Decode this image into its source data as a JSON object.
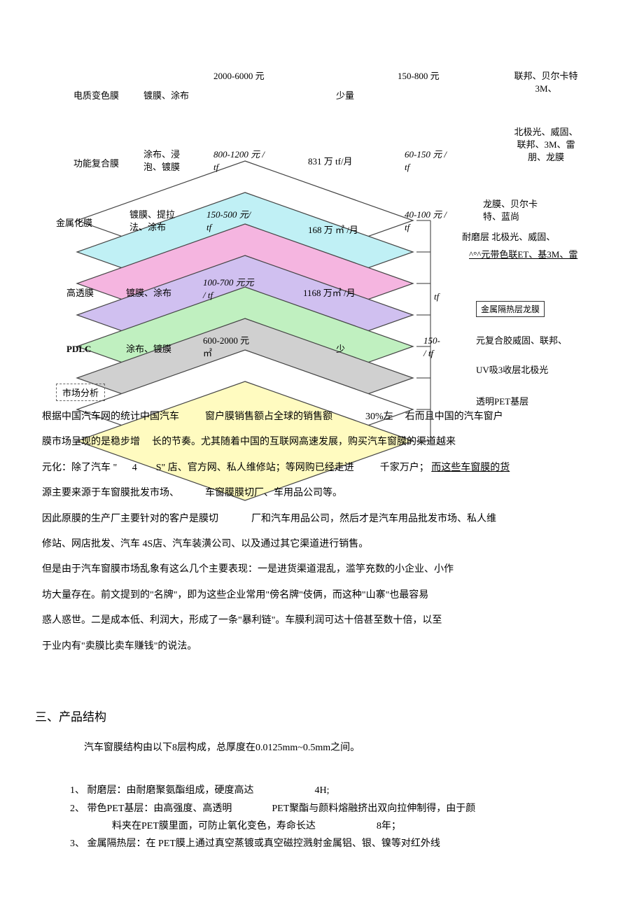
{
  "rows": [
    {
      "name": "电质变色膜",
      "process": "镀膜、涂布",
      "price1": "2000-6000 元",
      "volume": "少量",
      "price2": "150-800 元",
      "brands": "联邦、贝尔卡特\n3M、"
    },
    {
      "name": "功能复合膜",
      "process": "涂布、浸\n泡、镀膜",
      "price1": "800-1200 元 /\ntf",
      "volume": "831 万 tf/月",
      "price2": "60-150 元 /\ntf",
      "brands": "北极光、威固、\n联邦、3M、雷\n朋、龙膜"
    },
    {
      "name": "金属化膜",
      "process": "镀膜、提拉\n法、涂布",
      "price1": "150-500 元/\ntf",
      "volume": "168 万 ㎡ /月",
      "price2": "40-100 元 /\ntf",
      "brands": "龙膜、贝尔卡\n特、蓝尚"
    },
    {
      "name": "高透膜",
      "process": "镀膜、涂布",
      "price1": "100-700 元元\n/ tf",
      "volume": "1168 万㎡ /月",
      "price2": "tf",
      "brands": ""
    },
    {
      "name": "PDLC",
      "process": "涂布、镀膜",
      "price1": "600-2000 元\n㎡",
      "volume": "少",
      "price2": "150-\n/ tf",
      "brands": ""
    }
  ],
  "layer_labels": {
    "l1": "耐磨层 北极光、威固、",
    "l2": "^°^元带色联ET、基3M、雷",
    "l3_box": "金属隔热层龙膜",
    "l4": "元复合胶威固、联邦、",
    "l5": "UV吸3收层北极光",
    "l6": "透明PET基层"
  },
  "market_title": "市场分析",
  "body": {
    "p1a": "根据中国汽车网的统计中国汽车",
    "p1b": "窗户膜销售额占全球的销售额",
    "p1c": "30%左",
    "p1d": "右而且中国的汽车窗户",
    "p2a": "膜市场呈现的是稳步增",
    "p2b": "长的节奏。尤其随着中国的互联网高速发展，购买汽车窗膜的渠道越来",
    "p3a": "元化：除了汽车",
    "p3b": "4",
    "p3c": "S",
    "p3d": "店、官方网、私人维修站；等网购已经走进",
    "p3e": "千家万户；",
    "p3f": "而这些车窗膜的货",
    "p4": "源主要来源于车窗膜批发市场、",
    "p4b": "车窗膜膜切厂、车用品公司等。",
    "p5a": "因此原膜的生产厂主要针对的客户是膜切",
    "p5b": "厂和汽车用品公司，然后才是汽车用品批发市场、私人维",
    "p6": "修站、网店批发、汽车 4S店、汽车装潢公司、以及通过其它渠道进行销售。",
    "p7": "但是由于汽车窗膜市场乱象有这么几个主要表现：一是进货渠道混乱，滥竽充数的小企业、小作",
    "p8": "坊大量存在。前文提到的\"名牌\"，即为这些企业常用\"傍名牌\"伎俩，而这种\"山寨\"也最容易",
    "p9": "惑人惑世。二是成本低、利润大，形成了一条\"暴利链\"。车膜利润可达十倍甚至数十倍，以至",
    "p10": "于业内有\"卖膜比卖车赚钱\"的说法。"
  },
  "section3": {
    "title": "三、产品结构",
    "intro": "汽车窗膜结构由以下8层构成，总厚度在0.0125mm~0.5mm之间。",
    "items": [
      {
        "n": "1、",
        "t1": "耐磨层：由耐磨聚氨酯组成，硬度高达",
        "t2": "4H;"
      },
      {
        "n": "2、",
        "t1": "带色PET基层：由高强度、高透明",
        "t2": "PET聚酯与颜料熔融挤出双向拉伸制得，由于颜",
        "t3": "料夹在PET膜里面，可防止氧化变色，寿命长达",
        "t4": "8年；"
      },
      {
        "n": "3、",
        "t1": "金属隔热层：在 PET膜上通过真空蒸镀或真空磁控溅射金属铝、银、镍等对红外线"
      }
    ]
  },
  "diagram": {
    "layers": [
      {
        "color": "#ffffff",
        "y": 0
      },
      {
        "color": "#c0f0f5",
        "y": 1
      },
      {
        "color": "#f5b5e0",
        "y": 2
      },
      {
        "color": "#d0c0f0",
        "y": 3
      },
      {
        "color": "#c0f0c0",
        "y": 4
      },
      {
        "color": "#d0d0d0",
        "y": 5
      },
      {
        "color": "#ffffff",
        "y": 6
      },
      {
        "color": "#fffbc0",
        "y": 7
      }
    ]
  }
}
